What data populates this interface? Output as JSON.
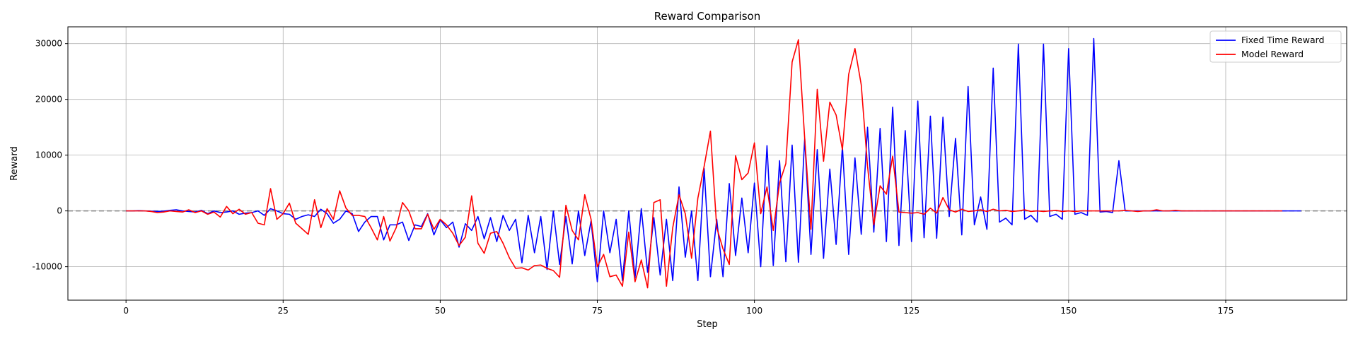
{
  "chart_data": {
    "type": "line",
    "title": "Reward Comparison",
    "xlabel": "Step",
    "ylabel": "Reward",
    "xlim": [
      -9.25,
      194.25
    ],
    "ylim": [
      -16000,
      33000
    ],
    "xticks": [
      0,
      25,
      50,
      75,
      100,
      125,
      150,
      175
    ],
    "yticks": [
      -10000,
      0,
      10000,
      20000,
      30000
    ],
    "grid": true,
    "legend_position": "top-right",
    "reference_line": {
      "y": 0,
      "style": "dashed",
      "color": "#808080"
    },
    "series": [
      {
        "name": "Fixed Time Reward",
        "color": "#0000ff",
        "values": [
          0,
          0,
          50,
          0,
          -50,
          -100,
          -50,
          100,
          200,
          0,
          -100,
          -200,
          100,
          -500,
          0,
          -300,
          -200,
          0,
          -600,
          -400,
          -300,
          0,
          -800,
          400,
          0,
          -500,
          -600,
          -1500,
          -1000,
          -700,
          -1000,
          300,
          -500,
          -2200,
          -1500,
          0,
          -500,
          -3700,
          -2000,
          -1000,
          -1000,
          -5200,
          -2500,
          -2500,
          -2000,
          -5300,
          -2500,
          -2800,
          -500,
          -4300,
          -1600,
          -3000,
          -2000,
          -6500,
          -2300,
          -3500,
          -1000,
          -5000,
          -1200,
          -5500,
          -800,
          -3500,
          -1500,
          -9300,
          -800,
          -7500,
          -1000,
          -10500,
          0,
          -9600,
          -1000,
          -9500,
          0,
          -8000,
          -1800,
          -12700,
          0,
          -7500,
          -1500,
          -12500,
          0,
          -12000,
          400,
          -11000,
          -1200,
          -11500,
          -1500,
          -12500,
          4300,
          -8300,
          0,
          -12500,
          7600,
          -11800,
          -1500,
          -11800,
          4900,
          -8000,
          2300,
          -7500,
          5000,
          -10000,
          11700,
          -9800,
          9000,
          -9100,
          11800,
          -9200,
          13000,
          -7800,
          11000,
          -8500,
          7500,
          -6000,
          11500,
          -7800,
          9500,
          -4200,
          15000,
          -3800,
          14800,
          -5500,
          18600,
          -6200,
          14400,
          -5500,
          19700,
          -4800,
          17000,
          -4900,
          16800,
          -1000,
          13000,
          -4300,
          22300,
          -2500,
          2500,
          -3300,
          25600,
          -2000,
          -1300,
          -2500,
          29900,
          -1500,
          -800,
          -2000,
          29900,
          -1000,
          -600,
          -1500,
          29100,
          -600,
          -300,
          -800,
          30900,
          -200,
          -100,
          -300,
          9000,
          0,
          0,
          0,
          0,
          0,
          0,
          0,
          0,
          0,
          0,
          0,
          0,
          0,
          0,
          0,
          0,
          0,
          0,
          0,
          0,
          0,
          0,
          0,
          0,
          0,
          0,
          0,
          0,
          0
        ]
      },
      {
        "name": "Model Reward",
        "color": "#ff0000",
        "values": [
          0,
          0,
          0,
          0,
          -100,
          -300,
          -200,
          0,
          -100,
          -200,
          200,
          -300,
          0,
          -600,
          -200,
          -1100,
          800,
          -500,
          300,
          -600,
          -300,
          -2200,
          -2500,
          4000,
          -1500,
          -500,
          1400,
          -2200,
          -3200,
          -4200,
          2000,
          -3000,
          400,
          -1500,
          3600,
          500,
          -800,
          -800,
          -1000,
          -3000,
          -5200,
          -1000,
          -5400,
          -3000,
          1500,
          0,
          -3200,
          -3200,
          -600,
          -3300,
          -1500,
          -2500,
          -4000,
          -6200,
          -4700,
          2700,
          -5800,
          -7600,
          -4000,
          -3700,
          -5800,
          -8400,
          -10300,
          -10200,
          -10600,
          -9800,
          -9700,
          -10300,
          -10700,
          -11900,
          1000,
          -3500,
          -5200,
          2900,
          -1500,
          -10000,
          -7800,
          -11800,
          -11500,
          -13500,
          -3800,
          -12700,
          -8800,
          -13800,
          1500,
          2000,
          -13500,
          -3000,
          2900,
          -500,
          -8500,
          2300,
          8000,
          14300,
          -3000,
          -6800,
          -9600,
          9900,
          5600,
          6800,
          12200,
          -500,
          4300,
          -3500,
          5000,
          8500,
          26700,
          30700,
          13000,
          -3300,
          21800,
          8900,
          19500,
          17200,
          11000,
          24500,
          29100,
          22600,
          8000,
          -2500,
          4500,
          3000,
          9800,
          -200,
          -300,
          -400,
          -300,
          -600,
          500,
          -400,
          2400,
          200,
          -200,
          300,
          -100,
          0,
          200,
          -100,
          300,
          0,
          100,
          -100,
          0,
          200,
          -100,
          0,
          -100,
          0,
          100,
          -100,
          0,
          -100,
          0,
          0,
          0,
          0,
          0,
          0,
          0,
          100,
          0,
          -100,
          0,
          0,
          200,
          0,
          0,
          100,
          0,
          0,
          0,
          0,
          0,
          0,
          0,
          0,
          0,
          0,
          0,
          0,
          0,
          0,
          0,
          0,
          0
        ]
      }
    ]
  }
}
